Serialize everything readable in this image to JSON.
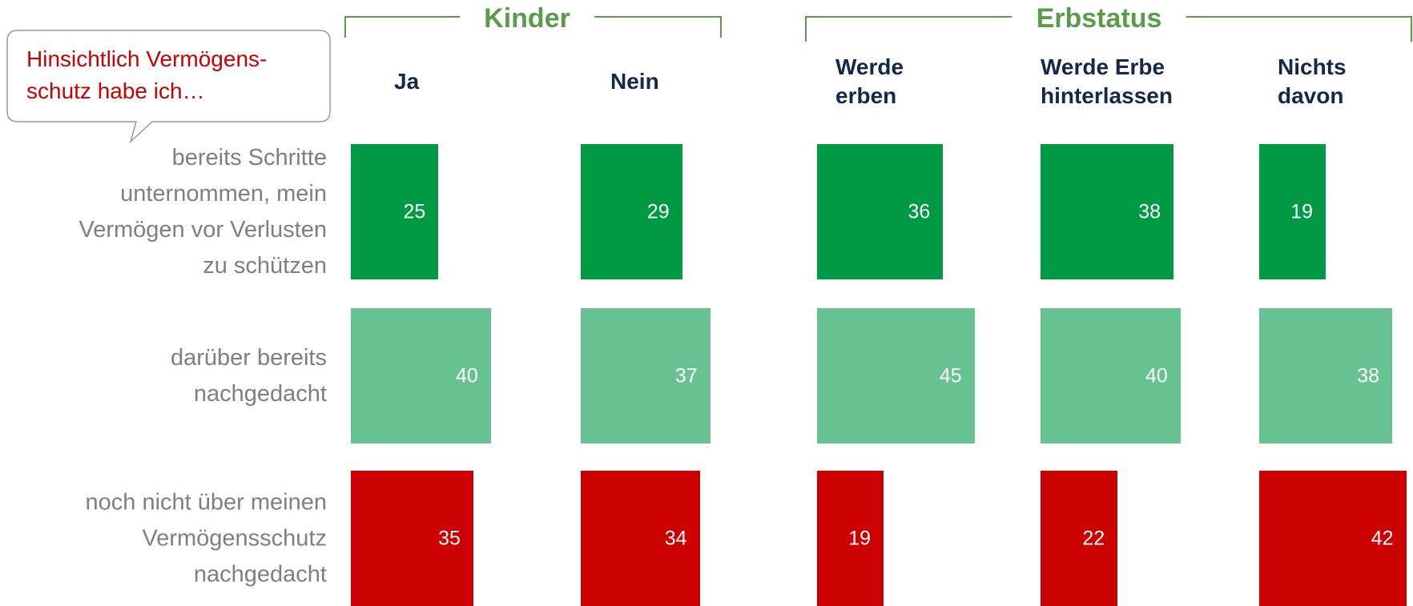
{
  "chart_data": {
    "type": "bar",
    "orientation": "horizontal",
    "callout": [
      "Hinsichtlich Vermögens-",
      "schutz habe ich…"
    ],
    "groups": [
      {
        "title": "Kinder",
        "columns": [
          0,
          1
        ]
      },
      {
        "title": "Erbstatus",
        "columns": [
          2,
          3,
          4
        ]
      }
    ],
    "categories": [
      [
        "bereits Schritte",
        "unternommen, mein",
        "Vermögen vor Verlusten",
        "zu schützen"
      ],
      [
        "darüber bereits",
        "nachgedacht"
      ],
      [
        "noch nicht über meinen",
        "Vermögensschutz",
        "nachgedacht"
      ]
    ],
    "colors": [
      "#009a44",
      "#66c391",
      "#cc0000"
    ],
    "series": [
      {
        "name": [
          "Ja"
        ],
        "values": [
          25,
          40,
          35
        ]
      },
      {
        "name": [
          "Nein"
        ],
        "values": [
          29,
          37,
          34
        ]
      },
      {
        "name": [
          "Werde",
          "erben"
        ],
        "values": [
          36,
          45,
          19
        ]
      },
      {
        "name": [
          "Werde Erbe",
          "hinterlassen"
        ],
        "values": [
          38,
          40,
          22
        ]
      },
      {
        "name": [
          "Nichts",
          "davon"
        ],
        "values": [
          19,
          38,
          42
        ]
      }
    ]
  }
}
